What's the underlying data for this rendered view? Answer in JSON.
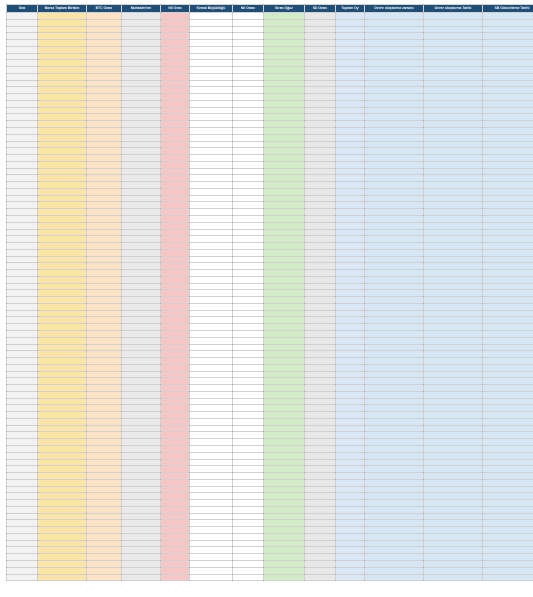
{
  "headers": [
    "Sıra",
    "Borsa Toplam Birikim",
    "BTC Oranı",
    "Muhasim'ten",
    "Nil Oran",
    "Kemal Büyüklüğü",
    "Nil Oranı",
    "Siran Oğuz",
    "SD Oranı",
    "Toplam Oy",
    "Devre oluşturma zamanı",
    "Devre oluşturma Tarihi",
    "SB Güncelleme Tarihi"
  ],
  "rows_shown": 84
}
